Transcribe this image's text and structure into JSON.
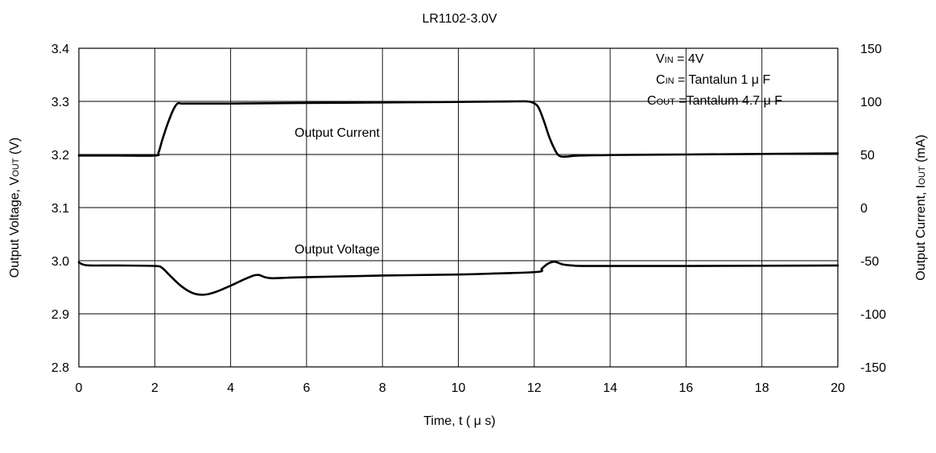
{
  "chart_data": {
    "type": "line",
    "title": "LR1102-3.0V",
    "xlabel": "Time, t ( μ s)",
    "ylabel_left": {
      "main": "Output Voltage, V",
      "sub": "OUT",
      "unit": " (V)"
    },
    "ylabel_right": {
      "main": "Output Current, I",
      "sub": "OUT",
      "unit": " (mA)"
    },
    "xlim": [
      0,
      20
    ],
    "ylim_left": [
      2.8,
      3.4
    ],
    "ylim_right": [
      -150,
      150
    ],
    "x_ticks": [
      "0",
      "2",
      "4",
      "6",
      "8",
      "10",
      "12",
      "14",
      "16",
      "18",
      "20"
    ],
    "y_ticks_left": [
      "2.8",
      "2.9",
      "3.0",
      "3.1",
      "3.2",
      "3.3",
      "3.4"
    ],
    "y_ticks_right": [
      "-150",
      "-100",
      "-50",
      "0",
      "50",
      "100",
      "150"
    ],
    "grid": true,
    "conditions": [
      {
        "main": "V",
        "sub": "IN",
        "rest": " = 4V"
      },
      {
        "main": "C",
        "sub": "IN",
        "rest": " = Tantalun 1 μ F"
      },
      {
        "main": "C",
        "sub": "OUT",
        "rest": " =Tantalum 4.7 μ F"
      }
    ],
    "series": [
      {
        "name": "Output Current",
        "axis": "right",
        "x": [
          0,
          1,
          2.0,
          2.1,
          2.2,
          2.35,
          2.5,
          2.6,
          2.7,
          3,
          4,
          6,
          8,
          10,
          11.5,
          11.8,
          11.95,
          12.1,
          12.25,
          12.4,
          12.55,
          12.65,
          12.8,
          13.2,
          14,
          16,
          18,
          20
        ],
        "y": [
          49,
          49,
          49,
          52,
          64,
          80,
          93,
          98,
          98,
          98,
          98,
          98.5,
          99,
          99.5,
          100,
          100,
          99,
          95,
          82,
          66,
          54,
          49,
          48,
          49,
          49.5,
          50,
          50.5,
          51
        ]
      },
      {
        "name": "Output Voltage",
        "axis": "left",
        "x": [
          0,
          0.1,
          0.3,
          1,
          2,
          2.2,
          2.4,
          2.7,
          3.0,
          3.3,
          3.6,
          4,
          4.3,
          4.6,
          4.75,
          4.9,
          5.1,
          5.5,
          6,
          8,
          10,
          11,
          12.1,
          12.2,
          12.35,
          12.5,
          12.6,
          12.75,
          13,
          13.5,
          16,
          20
        ],
        "y": [
          2.997,
          2.993,
          2.991,
          2.991,
          2.99,
          2.986,
          2.972,
          2.952,
          2.939,
          2.936,
          2.941,
          2.953,
          2.963,
          2.972,
          2.973,
          2.969,
          2.967,
          2.968,
          2.969,
          2.972,
          2.974,
          2.976,
          2.979,
          2.985,
          2.994,
          2.998,
          2.997,
          2.993,
          2.991,
          2.99,
          2.99,
          2.991
        ]
      }
    ]
  }
}
